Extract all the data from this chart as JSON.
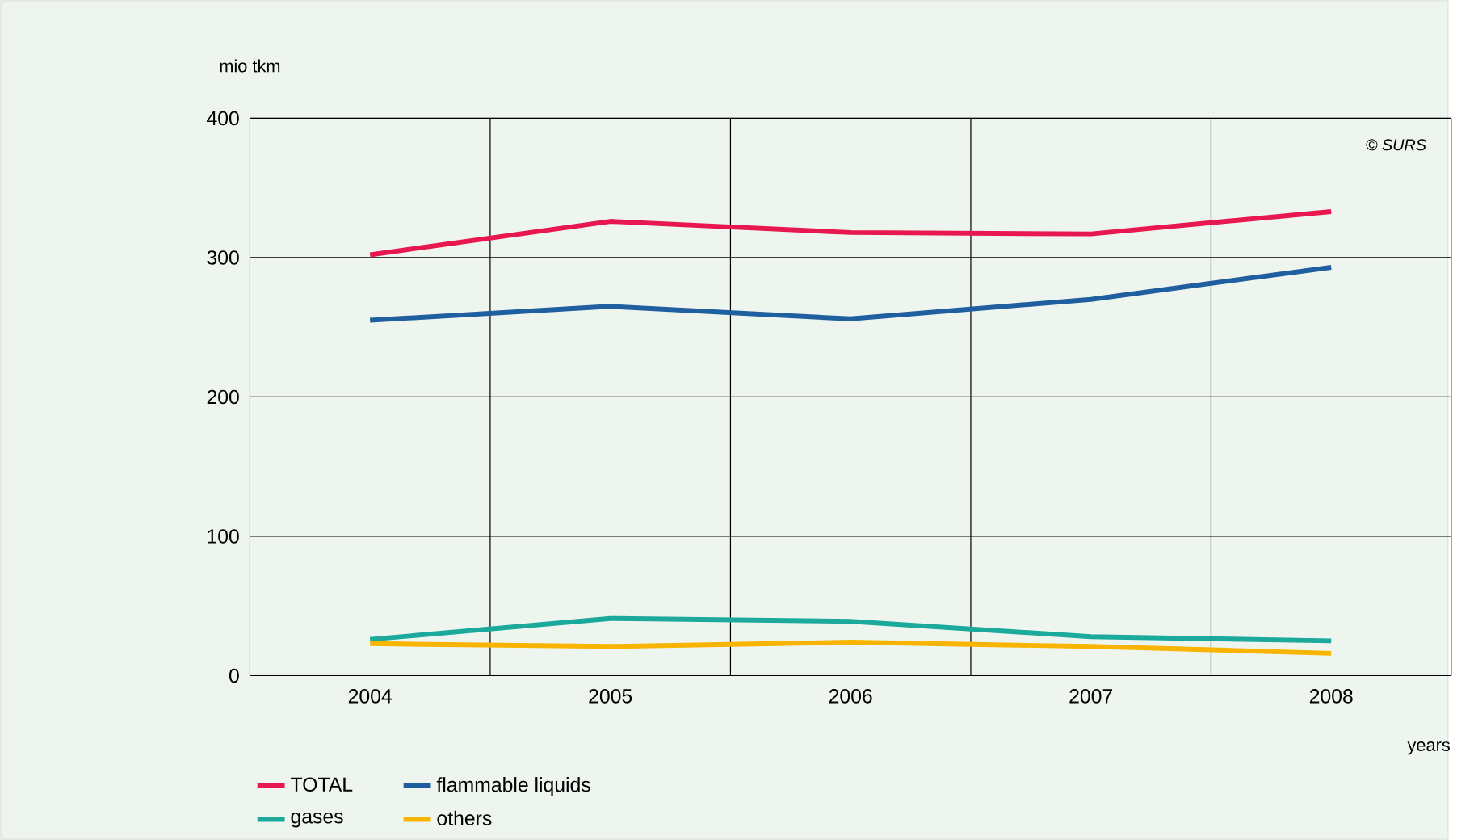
{
  "chart_data": {
    "type": "line",
    "ylabel": "mio tkm",
    "xlabel": "years",
    "categories": [
      "2004",
      "2005",
      "2006",
      "2007",
      "2008"
    ],
    "series": [
      {
        "name": "TOTAL",
        "color": "#e8174f",
        "values": [
          302,
          326,
          318,
          317,
          333
        ]
      },
      {
        "name": "flammable liquids",
        "color": "#1f5fa0",
        "values": [
          255,
          265,
          256,
          270,
          293
        ]
      },
      {
        "name": "gases",
        "color": "#1aa99a",
        "values": [
          26,
          41,
          39,
          28,
          25
        ]
      },
      {
        "name": "others",
        "color": "#f8b400",
        "values": [
          23,
          21,
          24,
          21,
          16
        ]
      }
    ],
    "ylim": [
      0,
      400
    ],
    "yticks": [
      0,
      100,
      200,
      300,
      400
    ],
    "grid": true,
    "legend": "bottom left",
    "marker": "none",
    "line_style": "solid",
    "annotations": [
      "© SURS"
    ]
  }
}
